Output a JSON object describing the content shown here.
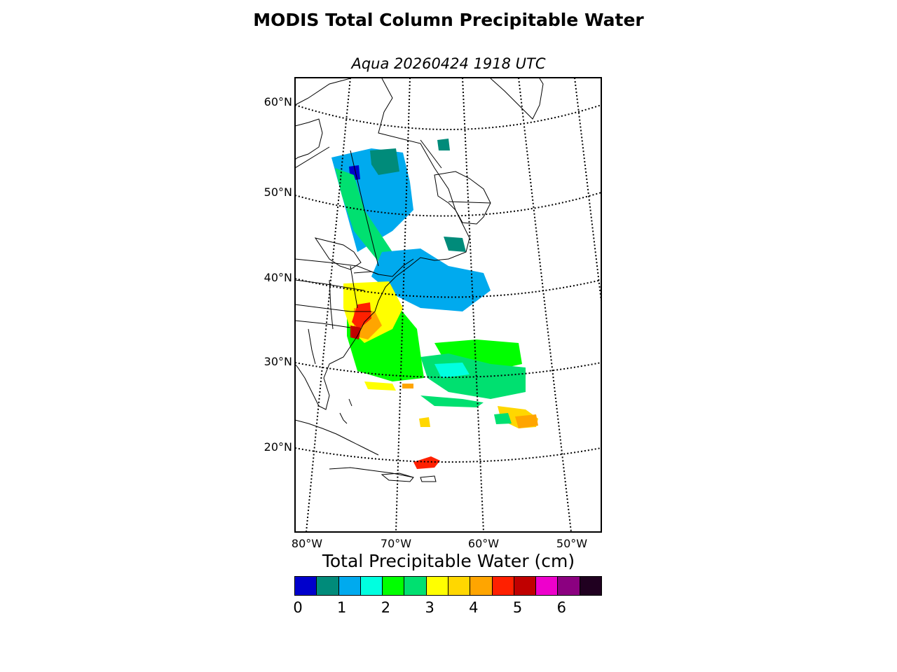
{
  "title": "MODIS Total Column Precipitable Water",
  "subtitle": "Aqua 20260424 1918 UTC",
  "lat_labels": [
    "60°N",
    "50°N",
    "40°N",
    "30°N",
    "20°N"
  ],
  "lon_labels": [
    "80°W",
    "70°W",
    "60°W",
    "50°W"
  ],
  "colorbar": {
    "title": "Total Precipitable Water (cm)",
    "colors": [
      "#0000cc",
      "#008b7a",
      "#00aaee",
      "#00ffe0",
      "#00ff00",
      "#00e070",
      "#ffff00",
      "#ffd700",
      "#ffa500",
      "#ff2000",
      "#c00000",
      "#ee00cc",
      "#8b0080",
      "#200020"
    ],
    "ticks": [
      "0",
      "1",
      "2",
      "3",
      "4",
      "5",
      "6"
    ],
    "min": 0,
    "max": 7
  }
}
